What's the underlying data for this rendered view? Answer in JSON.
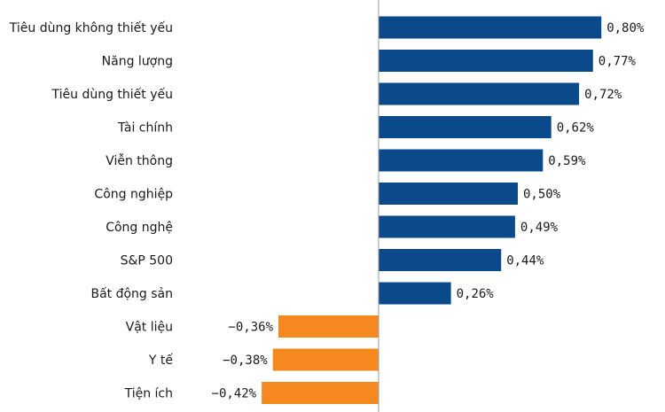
{
  "chart_data": {
    "type": "bar",
    "orientation": "horizontal",
    "categories": [
      "Tiêu dùng không thiết yếu",
      "Năng lượng",
      "Tiêu dùng thiết yếu",
      "Tài chính",
      "Viễn thông",
      "Công nghiệp",
      "Công nghệ",
      "S&P 500",
      "Bất động sản",
      "Vật liệu",
      "Y tế",
      "Tiện ích"
    ],
    "values": [
      0.8,
      0.77,
      0.72,
      0.62,
      0.59,
      0.5,
      0.49,
      0.44,
      0.26,
      -0.36,
      -0.38,
      -0.42
    ],
    "value_labels": [
      "0,80%",
      "0,77%",
      "0,72%",
      "0,62%",
      "0,59%",
      "0,50%",
      "0,49%",
      "0,44%",
      "0,26%",
      "−0,36%",
      "−0,38%",
      "−0,42%"
    ],
    "colors": {
      "positive": "#0b4a8a",
      "negative": "#f5891f",
      "axis": "#999999"
    },
    "grid": false,
    "legend": "none"
  }
}
